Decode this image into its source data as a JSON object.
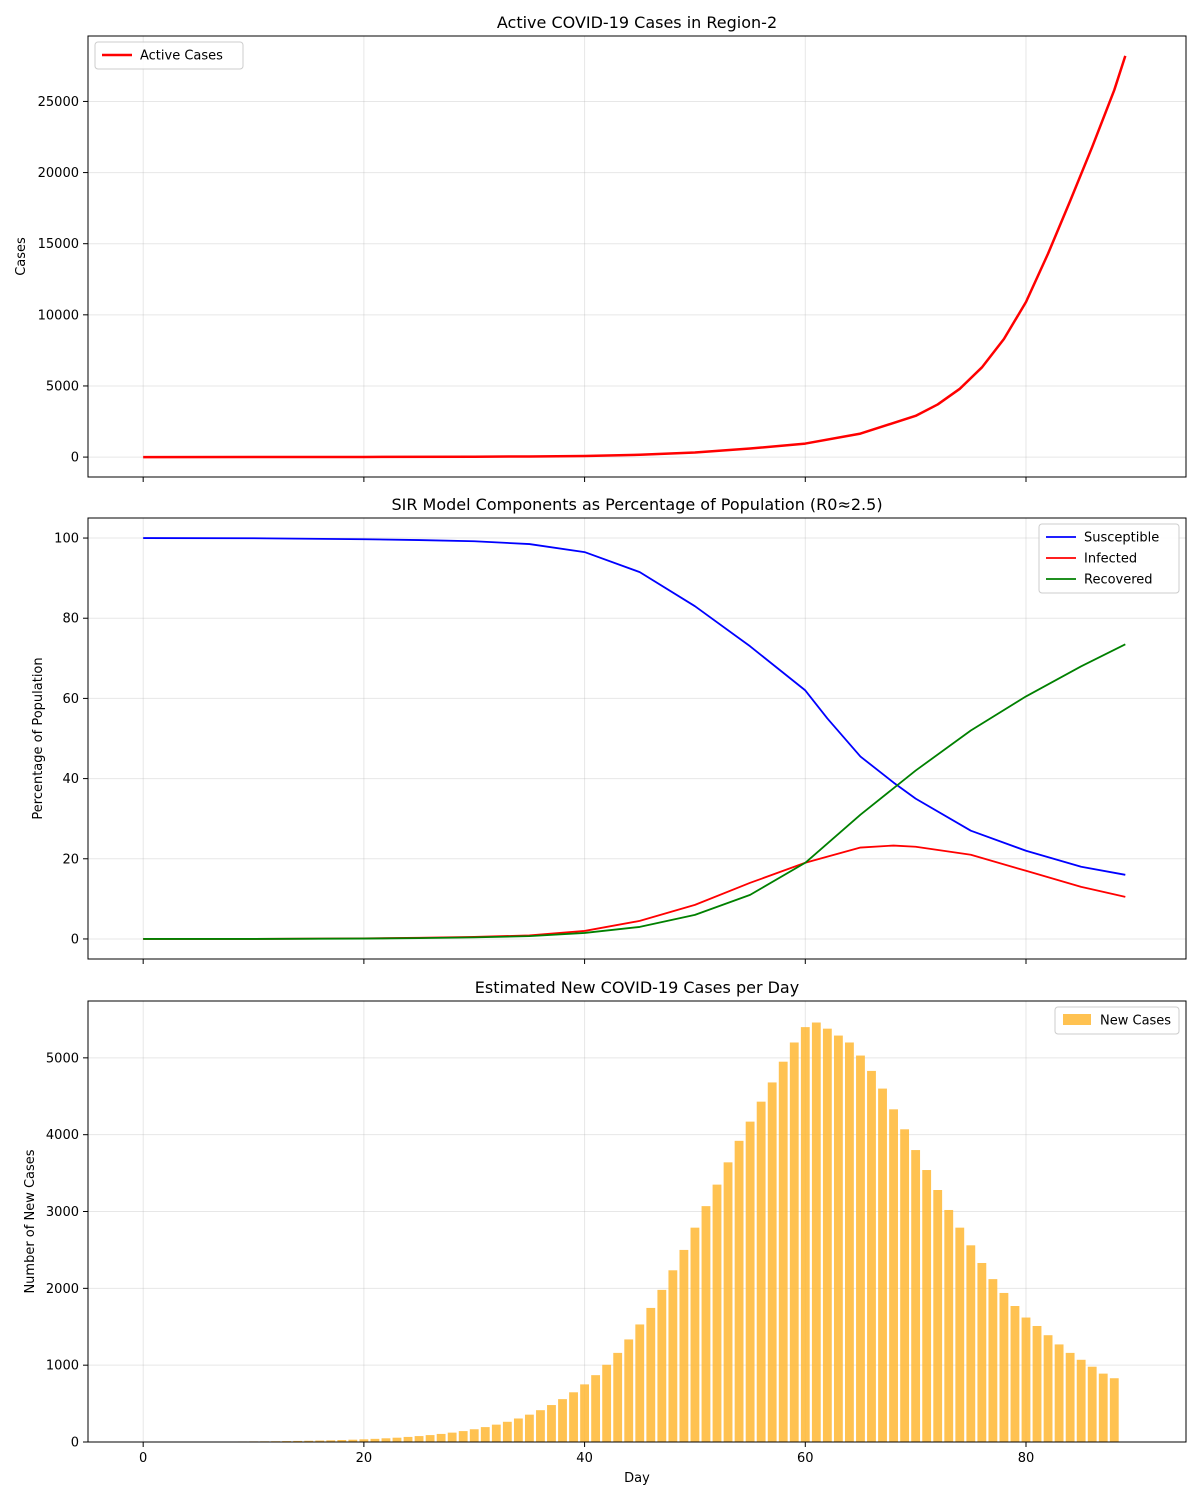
{
  "chart_data": [
    {
      "type": "line",
      "title": "Active COVID-19 Cases in Region-2",
      "xlabel": "",
      "ylabel": "Cases",
      "xlim": [
        -5,
        94.5
      ],
      "ylim": [
        -1400,
        29600
      ],
      "xticks": [
        0,
        20,
        40,
        60,
        80
      ],
      "xtick_labels": [
        "",
        "",
        "",
        "",
        ""
      ],
      "yticks": [
        0,
        5000,
        10000,
        15000,
        20000,
        25000
      ],
      "ytick_labels": [
        "0",
        "5000",
        "10000",
        "15000",
        "20000",
        "25000"
      ],
      "grid": true,
      "legend": "top-left",
      "series": [
        {
          "name": "Active Cases",
          "color": "#ff0000",
          "x": [
            0,
            10,
            20,
            30,
            35,
            40,
            45,
            50,
            55,
            60,
            65,
            70,
            72,
            74,
            76,
            78,
            80,
            82,
            84,
            86,
            88,
            89
          ],
          "y": [
            1,
            3,
            8,
            25,
            45,
            80,
            160,
            320,
            600,
            950,
            1650,
            2900,
            3700,
            4800,
            6300,
            8300,
            10900,
            14300,
            18000,
            21800,
            25800,
            28200
          ]
        }
      ]
    },
    {
      "type": "line",
      "title": "SIR Model Components as Percentage of Population (R0≈2.5)",
      "xlabel": "",
      "ylabel": "Percentage of Population",
      "xlim": [
        -5,
        94.5
      ],
      "ylim": [
        -5,
        105
      ],
      "xticks": [
        0,
        20,
        40,
        60,
        80
      ],
      "xtick_labels": [
        "",
        "",
        "",
        "",
        ""
      ],
      "yticks": [
        0,
        20,
        40,
        60,
        80,
        100
      ],
      "ytick_labels": [
        "0",
        "20",
        "40",
        "60",
        "80",
        "100"
      ],
      "grid": true,
      "legend": "top-right",
      "series": [
        {
          "name": "Susceptible",
          "color": "#0000ff",
          "x": [
            0,
            10,
            20,
            25,
            30,
            35,
            40,
            45,
            50,
            55,
            60,
            62,
            65,
            68,
            70,
            75,
            80,
            85,
            89
          ],
          "y": [
            100,
            99.95,
            99.7,
            99.5,
            99.2,
            98.5,
            96.5,
            91.5,
            83,
            73,
            62,
            55,
            45.5,
            39,
            35,
            27,
            22,
            18,
            16
          ]
        },
        {
          "name": "Infected",
          "color": "#ff0000",
          "x": [
            0,
            10,
            20,
            25,
            30,
            35,
            40,
            45,
            50,
            55,
            60,
            65,
            68,
            70,
            75,
            80,
            85,
            89
          ],
          "y": [
            0,
            0,
            0.15,
            0.3,
            0.5,
            0.9,
            2,
            4.5,
            8.5,
            14,
            19,
            22.8,
            23.3,
            23,
            21,
            17,
            13,
            10.5
          ]
        },
        {
          "name": "Recovered",
          "color": "#008000",
          "x": [
            0,
            10,
            20,
            25,
            30,
            35,
            40,
            45,
            50,
            55,
            60,
            65,
            70,
            75,
            80,
            85,
            89
          ],
          "y": [
            0,
            0,
            0.1,
            0.2,
            0.4,
            0.7,
            1.5,
            3,
            6,
            11,
            19,
            31,
            42,
            52,
            60.5,
            68,
            73.5
          ]
        }
      ]
    },
    {
      "type": "bar",
      "title": "Estimated New COVID-19 Cases per Day",
      "xlabel": "Day",
      "ylabel": "Number of New Cases",
      "xlim": [
        -5,
        94.5
      ],
      "ylim": [
        0,
        5740
      ],
      "xticks": [
        0,
        20,
        40,
        60,
        80
      ],
      "xtick_labels": [
        "0",
        "20",
        "40",
        "60",
        "80"
      ],
      "yticks": [
        0,
        1000,
        2000,
        3000,
        4000,
        5000
      ],
      "ytick_labels": [
        "0",
        "1000",
        "2000",
        "3000",
        "4000",
        "5000"
      ],
      "grid": true,
      "legend": "top-right",
      "series": [
        {
          "name": "New Cases",
          "color": "#ffb732",
          "x_start": 0,
          "values": [
            1,
            2,
            2,
            3,
            3,
            4,
            4,
            5,
            6,
            7,
            8,
            9,
            10,
            12,
            14,
            16,
            19,
            22,
            26,
            30,
            35,
            41,
            48,
            56,
            66,
            77,
            90,
            105,
            122,
            142,
            166,
            194,
            226,
            263,
            306,
            356,
            414,
            481,
            558,
            647,
            750,
            870,
            1005,
            1160,
            1335,
            1530,
            1745,
            1980,
            2235,
            2500,
            2790,
            3070,
            3350,
            3640,
            3920,
            4170,
            4430,
            4680,
            4950,
            5200,
            5400,
            5460,
            5380,
            5290,
            5200,
            5030,
            4830,
            4600,
            4330,
            4070,
            3800,
            3540,
            3280,
            3020,
            2790,
            2560,
            2330,
            2120,
            1940,
            1770,
            1620,
            1510,
            1390,
            1270,
            1160,
            1070,
            980,
            890,
            830
          ]
        }
      ]
    }
  ]
}
